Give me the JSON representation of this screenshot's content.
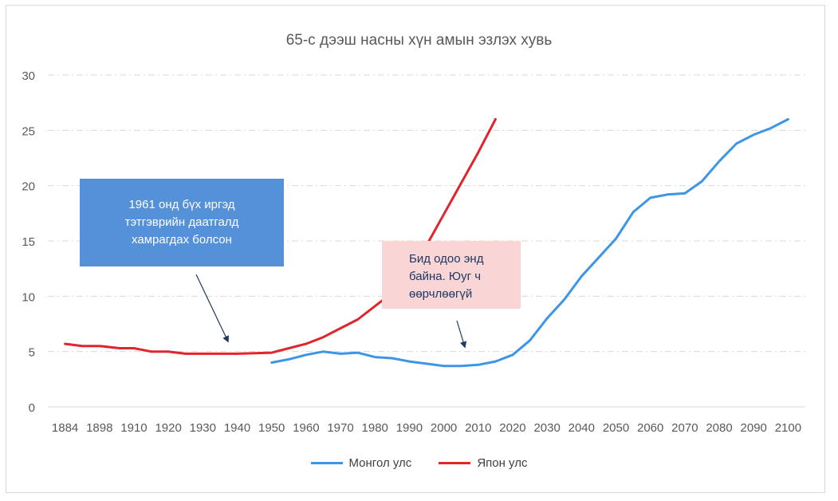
{
  "chart_data": {
    "type": "line",
    "title": "65-с дээш насны хүн амын эзлэх хувь",
    "categories": [
      "1884",
      "1898",
      "1910",
      "1920",
      "1930",
      "1940",
      "1950",
      "1960",
      "1970",
      "1980",
      "1990",
      "2000",
      "2010",
      "2020",
      "2030",
      "2040",
      "2050",
      "2060",
      "2070",
      "2080",
      "2090",
      "2100"
    ],
    "ylim": [
      0,
      30
    ],
    "yticks": [
      0,
      5,
      10,
      15,
      20,
      25,
      30
    ],
    "grid": "horizontal dashed",
    "legend_position": "bottom",
    "series": [
      {
        "name": "Монгол улс",
        "color": "#3e95e8",
        "points": [
          [
            1950,
            4.0
          ],
          [
            1955,
            4.3
          ],
          [
            1960,
            4.7
          ],
          [
            1965,
            5.0
          ],
          [
            1970,
            4.8
          ],
          [
            1975,
            4.9
          ],
          [
            1980,
            4.5
          ],
          [
            1985,
            4.4
          ],
          [
            1990,
            4.1
          ],
          [
            1995,
            3.9
          ],
          [
            2000,
            3.7
          ],
          [
            2005,
            3.7
          ],
          [
            2010,
            3.8
          ],
          [
            2015,
            4.1
          ],
          [
            2020,
            4.7
          ],
          [
            2025,
            6.0
          ],
          [
            2030,
            8.0
          ],
          [
            2035,
            9.7
          ],
          [
            2040,
            11.8
          ],
          [
            2045,
            13.5
          ],
          [
            2050,
            15.2
          ],
          [
            2055,
            17.6
          ],
          [
            2060,
            18.9
          ],
          [
            2065,
            19.2
          ],
          [
            2070,
            19.3
          ],
          [
            2075,
            20.4
          ],
          [
            2080,
            22.2
          ],
          [
            2085,
            23.8
          ],
          [
            2090,
            24.6
          ],
          [
            2095,
            25.2
          ],
          [
            2100,
            26.0
          ]
        ]
      },
      {
        "name": "Япон улс",
        "color": "#e0252c",
        "points": [
          [
            1884,
            5.7
          ],
          [
            1891,
            5.5
          ],
          [
            1898,
            5.5
          ],
          [
            1905,
            5.3
          ],
          [
            1910,
            5.3
          ],
          [
            1915,
            5.0
          ],
          [
            1920,
            5.0
          ],
          [
            1925,
            4.8
          ],
          [
            1930,
            4.8
          ],
          [
            1935,
            4.8
          ],
          [
            1940,
            4.8
          ],
          [
            1950,
            4.9
          ],
          [
            1955,
            5.3
          ],
          [
            1960,
            5.7
          ],
          [
            1965,
            6.3
          ],
          [
            1970,
            7.1
          ],
          [
            1975,
            7.9
          ],
          [
            1980,
            9.1
          ],
          [
            1985,
            10.3
          ],
          [
            1990,
            12.1
          ],
          [
            1995,
            14.6
          ],
          [
            2000,
            17.4
          ],
          [
            2005,
            20.2
          ],
          [
            2010,
            23.0
          ],
          [
            2015,
            26.0
          ]
        ]
      }
    ],
    "annotations": [
      {
        "id": "note-1961",
        "text": "1961 онд бүх иргэд\nтэтгэврийн даатгалд\nхамрагдах болсон"
      },
      {
        "id": "note-now",
        "text": "Бид одоо энд\nбайна. Юуг ч\nөөрчлөөгүй"
      }
    ]
  },
  "colors": {
    "grid": "#d9d9d9",
    "axis_text": "#595959",
    "arrow": "#1f3864"
  }
}
